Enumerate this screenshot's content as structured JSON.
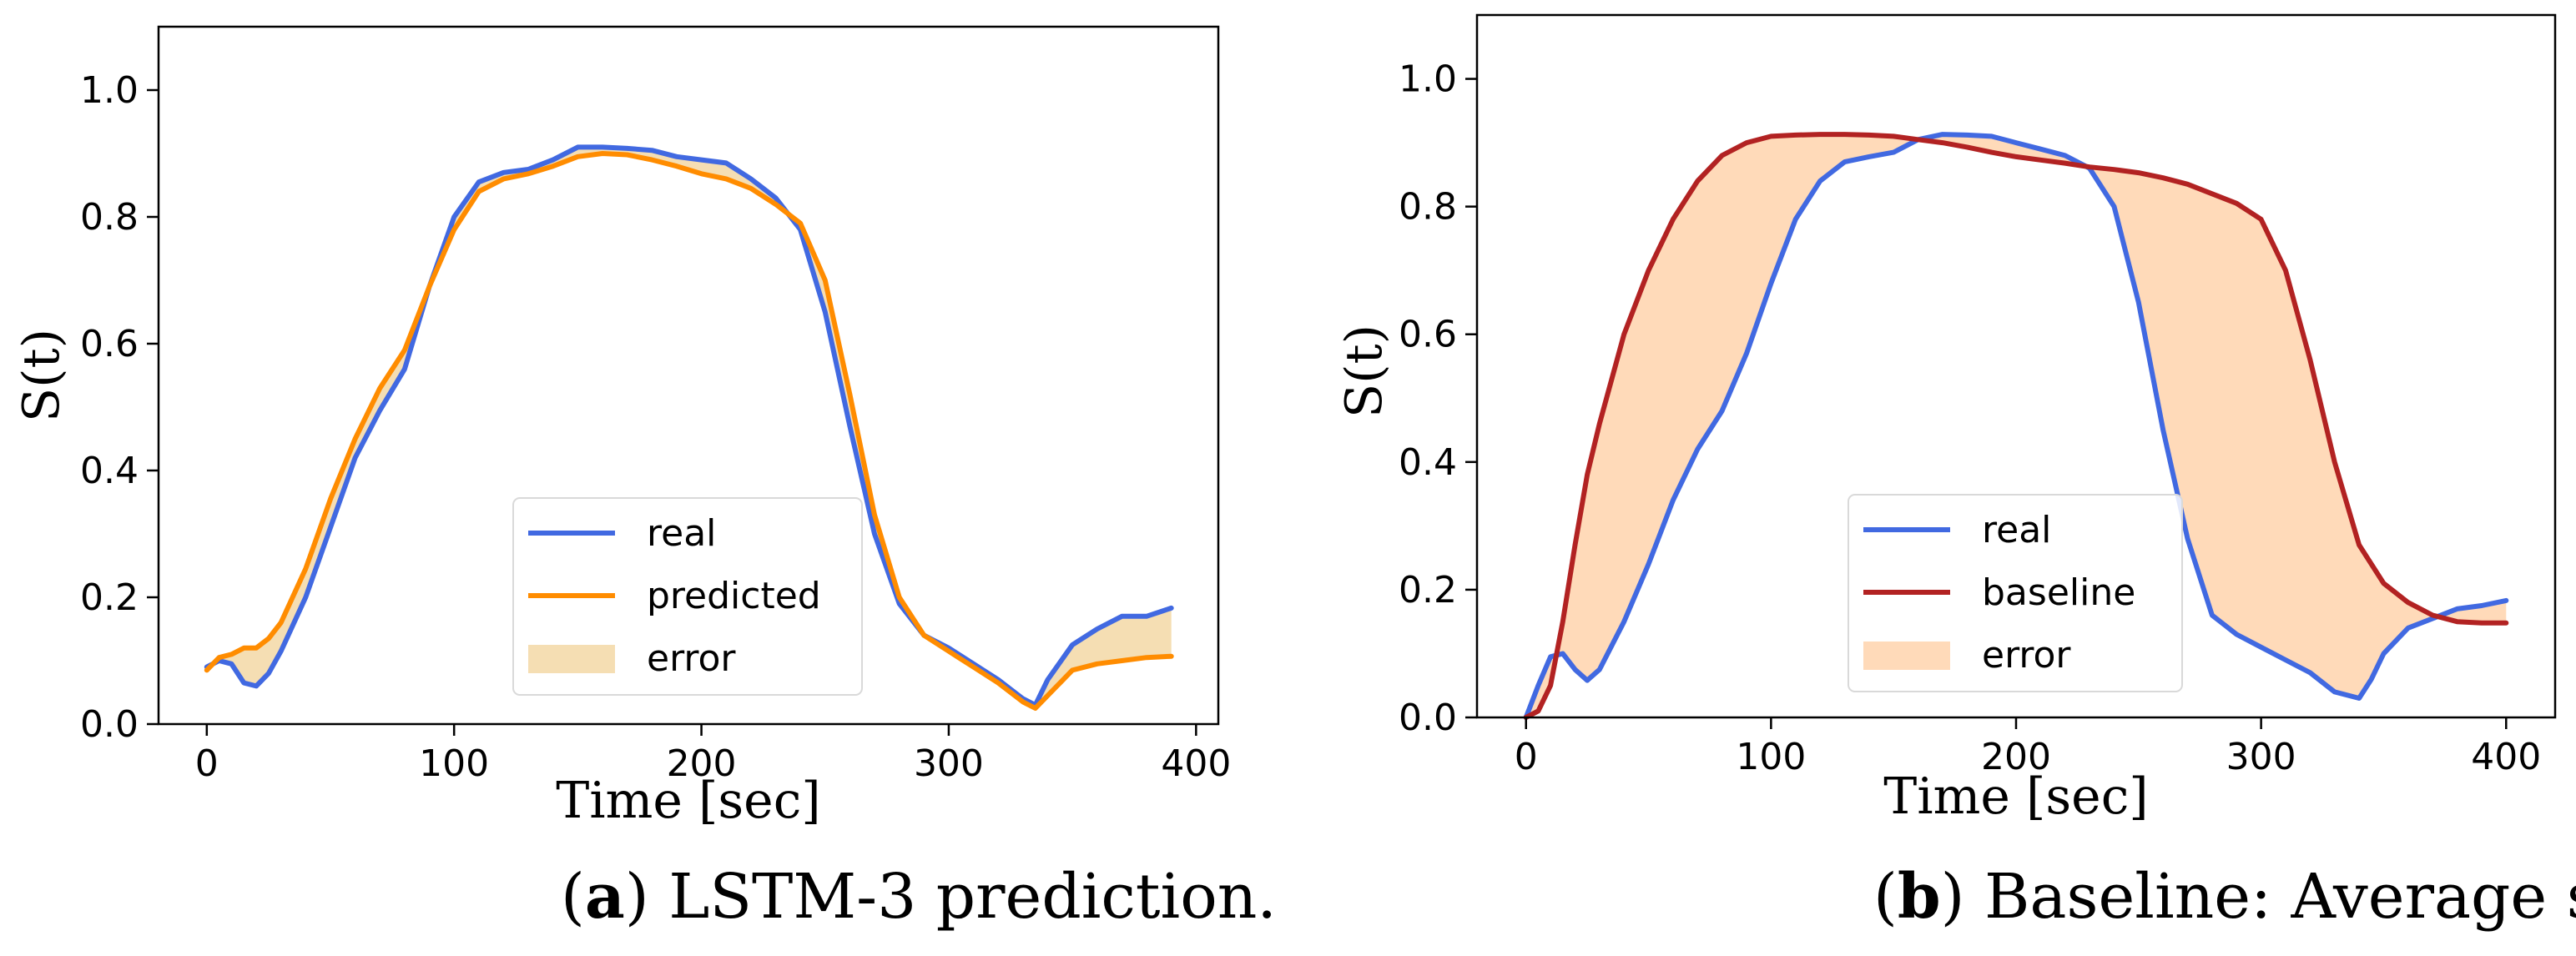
{
  "chart_data": [
    {
      "type": "line",
      "caption_letter": "a",
      "caption_text": ") LSTM-3 prediction.",
      "caption_open": "(",
      "xlabel": "Time [sec]",
      "ylabel": "S(t)",
      "xlim": [
        -19.5,
        409
      ],
      "ylim": [
        0,
        1.1
      ],
      "xticks": [
        0,
        100,
        200,
        300,
        400
      ],
      "yticks": [
        0.0,
        0.2,
        0.4,
        0.6,
        0.8,
        1.0
      ],
      "xtick_labels": [
        "0",
        "100",
        "200",
        "300",
        "400"
      ],
      "ytick_labels": [
        "0.0",
        "0.2",
        "0.4",
        "0.6",
        "0.8",
        "1.0"
      ],
      "grid": false,
      "legend_position": "lower-right",
      "legend": [
        {
          "label": "real",
          "kind": "line",
          "color": "#4169e1"
        },
        {
          "label": "predicted",
          "kind": "line",
          "color": "#ff8c00"
        },
        {
          "label": "error",
          "kind": "fill",
          "color": "#f5deb3"
        }
      ],
      "fill_between": [
        "real",
        "predicted"
      ],
      "series": [
        {
          "name": "real",
          "color": "#4169e1",
          "x": [
            0,
            5,
            10,
            15,
            20,
            25,
            30,
            40,
            50,
            60,
            70,
            80,
            90,
            100,
            110,
            120,
            130,
            140,
            150,
            160,
            170,
            180,
            190,
            200,
            210,
            220,
            230,
            240,
            250,
            260,
            270,
            280,
            290,
            300,
            310,
            320,
            330,
            335,
            340,
            350,
            360,
            370,
            380,
            390
          ],
          "y": [
            0.09,
            0.1,
            0.095,
            0.065,
            0.06,
            0.08,
            0.115,
            0.2,
            0.31,
            0.42,
            0.495,
            0.56,
            0.69,
            0.8,
            0.855,
            0.87,
            0.875,
            0.89,
            0.91,
            0.91,
            0.908,
            0.905,
            0.895,
            0.89,
            0.885,
            0.86,
            0.83,
            0.78,
            0.65,
            0.47,
            0.3,
            0.19,
            0.14,
            0.12,
            0.095,
            0.07,
            0.04,
            0.03,
            0.07,
            0.125,
            0.15,
            0.17,
            0.17,
            0.183
          ]
        },
        {
          "name": "predicted",
          "color": "#ff8c00",
          "x": [
            0,
            5,
            10,
            15,
            20,
            25,
            30,
            40,
            50,
            60,
            70,
            80,
            90,
            100,
            110,
            120,
            130,
            140,
            150,
            160,
            170,
            180,
            190,
            200,
            210,
            220,
            230,
            240,
            250,
            260,
            270,
            280,
            290,
            300,
            310,
            320,
            330,
            335,
            340,
            350,
            360,
            370,
            380,
            390
          ],
          "y": [
            0.085,
            0.105,
            0.11,
            0.12,
            0.12,
            0.135,
            0.16,
            0.245,
            0.355,
            0.45,
            0.53,
            0.59,
            0.69,
            0.78,
            0.84,
            0.86,
            0.868,
            0.88,
            0.895,
            0.9,
            0.898,
            0.89,
            0.88,
            0.868,
            0.86,
            0.845,
            0.82,
            0.79,
            0.7,
            0.52,
            0.33,
            0.2,
            0.14,
            0.115,
            0.09,
            0.065,
            0.035,
            0.025,
            0.045,
            0.085,
            0.095,
            0.1,
            0.105,
            0.107
          ]
        }
      ]
    },
    {
      "type": "line",
      "caption_letter": "b",
      "caption_text": ") Baseline: Average smile.",
      "caption_open": "(",
      "xlabel": "Time [sec]",
      "ylabel": "S(t)",
      "xlim": [
        -20,
        420
      ],
      "ylim": [
        0,
        1.1
      ],
      "xticks": [
        0,
        100,
        200,
        300,
        400
      ],
      "yticks": [
        0.0,
        0.2,
        0.4,
        0.6,
        0.8,
        1.0
      ],
      "xtick_labels": [
        "0",
        "100",
        "200",
        "300",
        "400"
      ],
      "ytick_labels": [
        "0.0",
        "0.2",
        "0.4",
        "0.6",
        "0.8",
        "1.0"
      ],
      "grid": false,
      "legend_position": "lower-center",
      "legend": [
        {
          "label": "real",
          "kind": "line",
          "color": "#4169e1"
        },
        {
          "label": "baseline",
          "kind": "line",
          "color": "#b22222"
        },
        {
          "label": "error",
          "kind": "fill",
          "color": "#ffdab9"
        }
      ],
      "fill_between": [
        "real",
        "baseline"
      ],
      "series": [
        {
          "name": "real",
          "color": "#4169e1",
          "x": [
            0,
            5,
            10,
            15,
            20,
            25,
            30,
            40,
            50,
            60,
            70,
            80,
            90,
            100,
            110,
            120,
            130,
            140,
            150,
            160,
            170,
            180,
            190,
            200,
            210,
            220,
            230,
            240,
            250,
            260,
            270,
            280,
            290,
            300,
            310,
            320,
            330,
            340,
            345,
            350,
            360,
            370,
            380,
            390,
            400
          ],
          "y": [
            0.0,
            0.05,
            0.095,
            0.1,
            0.075,
            0.058,
            0.075,
            0.15,
            0.24,
            0.34,
            0.42,
            0.48,
            0.57,
            0.68,
            0.78,
            0.84,
            0.87,
            0.878,
            0.885,
            0.905,
            0.913,
            0.912,
            0.91,
            0.9,
            0.89,
            0.88,
            0.86,
            0.8,
            0.65,
            0.45,
            0.28,
            0.16,
            0.13,
            0.11,
            0.09,
            0.07,
            0.04,
            0.03,
            0.06,
            0.1,
            0.14,
            0.155,
            0.17,
            0.175,
            0.183
          ]
        },
        {
          "name": "baseline",
          "color": "#b22222",
          "x": [
            0,
            5,
            10,
            15,
            20,
            25,
            30,
            40,
            50,
            60,
            70,
            80,
            90,
            100,
            110,
            120,
            130,
            140,
            150,
            160,
            170,
            180,
            190,
            200,
            210,
            220,
            230,
            240,
            250,
            260,
            270,
            280,
            290,
            300,
            310,
            320,
            330,
            340,
            350,
            360,
            370,
            380,
            390,
            400
          ],
          "y": [
            0.0,
            0.01,
            0.05,
            0.15,
            0.27,
            0.38,
            0.46,
            0.6,
            0.7,
            0.78,
            0.84,
            0.88,
            0.9,
            0.91,
            0.912,
            0.913,
            0.913,
            0.912,
            0.91,
            0.905,
            0.9,
            0.893,
            0.885,
            0.878,
            0.873,
            0.868,
            0.862,
            0.858,
            0.853,
            0.845,
            0.835,
            0.82,
            0.805,
            0.78,
            0.7,
            0.56,
            0.4,
            0.27,
            0.21,
            0.18,
            0.16,
            0.15,
            0.148,
            0.148
          ]
        }
      ]
    }
  ]
}
